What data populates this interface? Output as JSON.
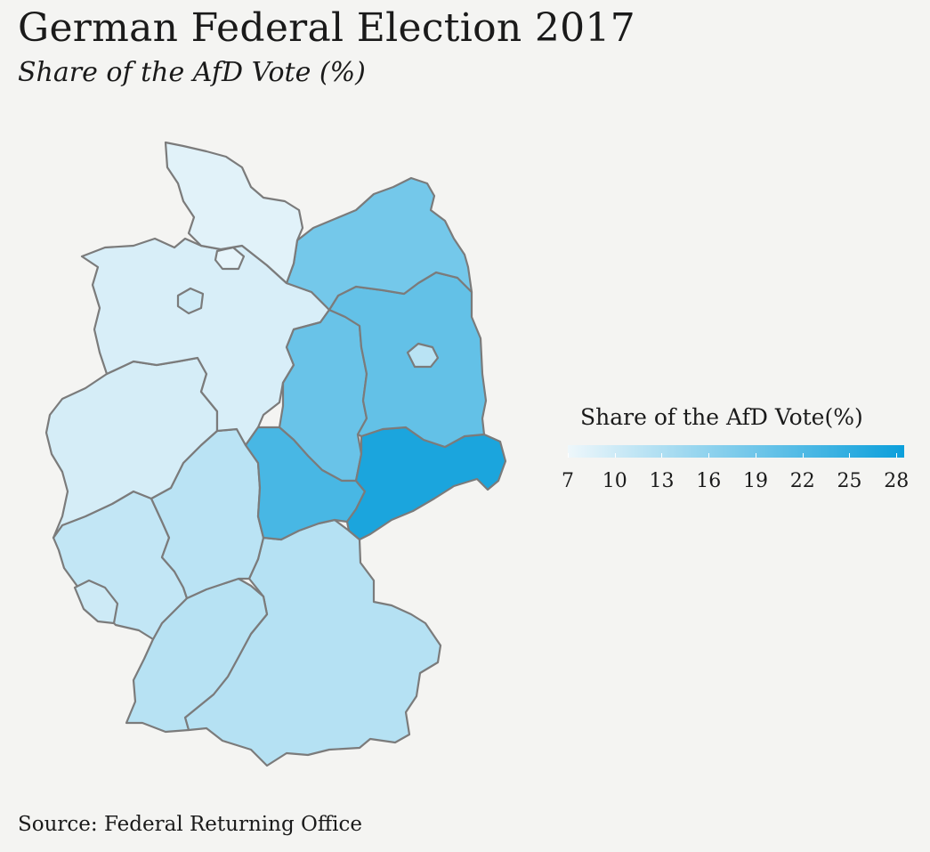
{
  "title": "German Federal Election 2017",
  "subtitle": "Share of the AfD Vote (%)",
  "caption": "Source: Federal Returning Office",
  "legend": {
    "title": "Share of the AfD Vote(%)",
    "ticks": [
      "7",
      "10",
      "13",
      "16",
      "19",
      "22",
      "25",
      "28"
    ],
    "min": 7,
    "max": 28.5,
    "color_low": "#eef7fb",
    "color_high": "#0b9fdb"
  },
  "chart_data": {
    "type": "choropleth",
    "value_label": "Share of the AfD Vote(%)",
    "scale_range": [
      7,
      28.5
    ],
    "regions": [
      {
        "name": "Schleswig-Holstein",
        "value": 8.2
      },
      {
        "name": "Hamburg",
        "value": 7.8
      },
      {
        "name": "Mecklenburg-Vorpommern",
        "value": 18.6
      },
      {
        "name": "Lower Saxony",
        "value": 9.1
      },
      {
        "name": "Bremen",
        "value": 10.0
      },
      {
        "name": "Brandenburg",
        "value": 20.2
      },
      {
        "name": "Berlin",
        "value": 12.0
      },
      {
        "name": "Saxony-Anhalt",
        "value": 19.6
      },
      {
        "name": "North Rhine-Westphalia",
        "value": 9.4
      },
      {
        "name": "Hesse",
        "value": 11.9
      },
      {
        "name": "Thuringia",
        "value": 22.7
      },
      {
        "name": "Saxony",
        "value": 27.0
      },
      {
        "name": "Rhineland-Palatinate",
        "value": 11.2
      },
      {
        "name": "Saarland",
        "value": 10.1
      },
      {
        "name": "Bavaria",
        "value": 12.4
      },
      {
        "name": "Baden-Württemberg",
        "value": 12.2
      }
    ]
  }
}
